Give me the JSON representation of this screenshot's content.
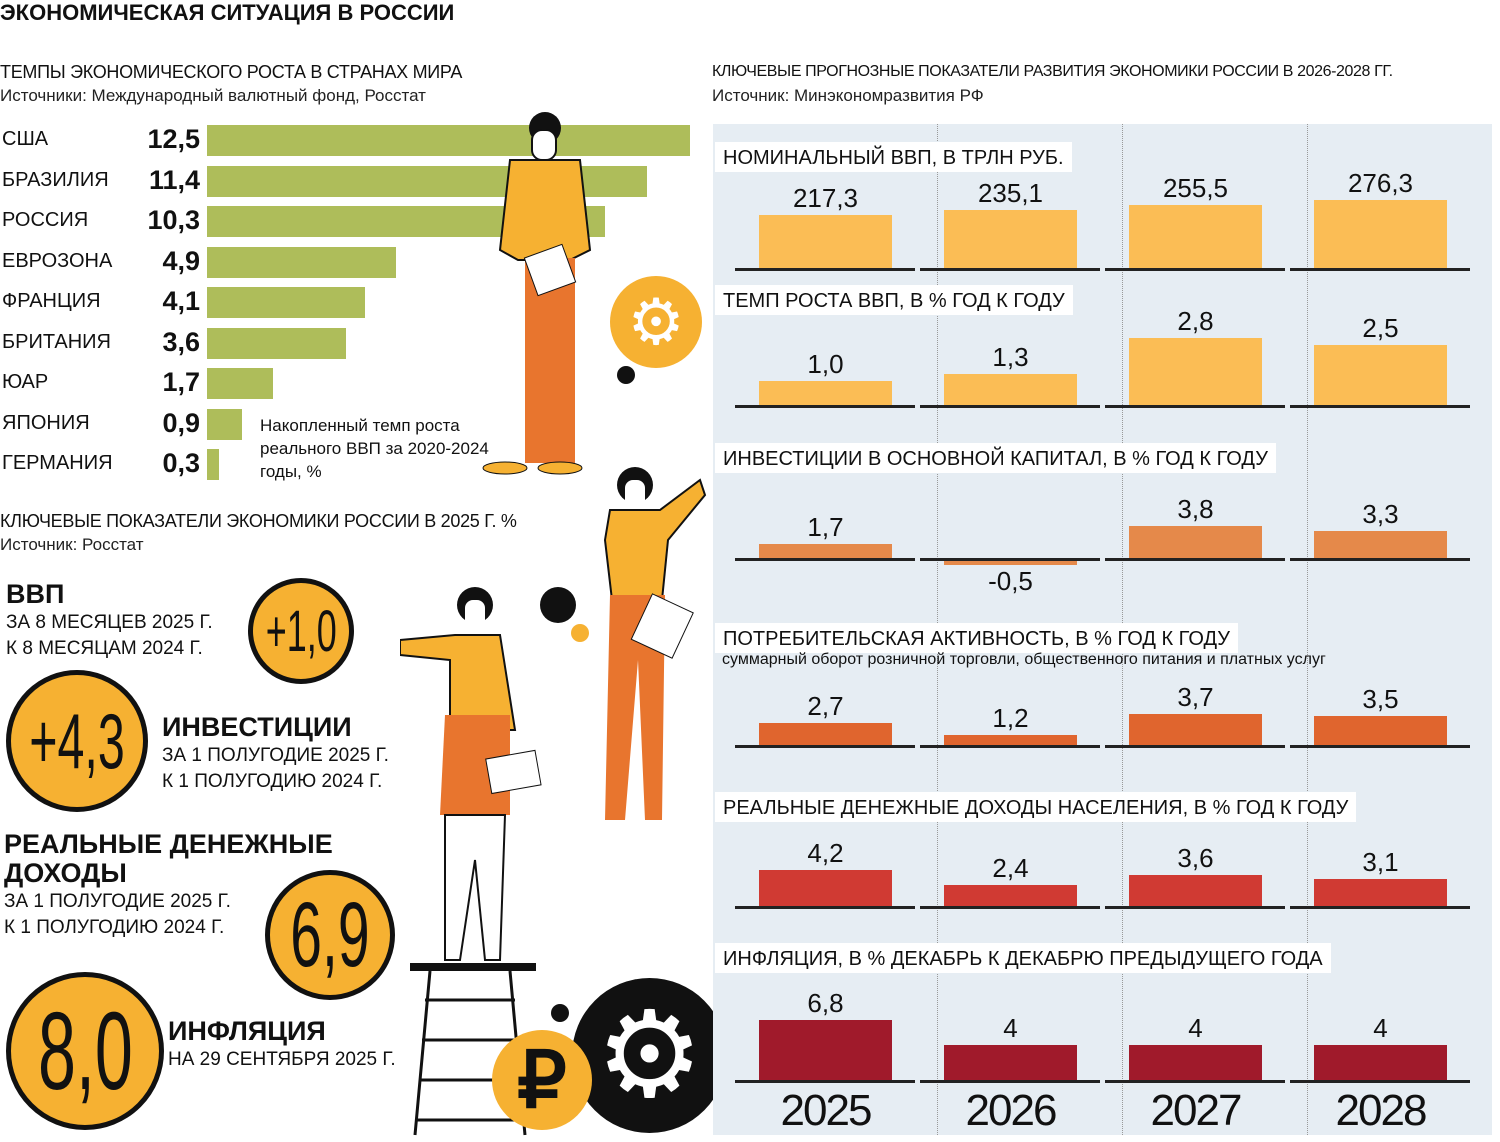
{
  "title": "ЭКОНОМИЧЕСКАЯ СИТУАЦИЯ В РОССИИ",
  "colors": {
    "green": "#aebd5a",
    "gdp": "#fbbd55",
    "investment": "#e5894a",
    "consumer": "#e0652e",
    "income": "#d03a33",
    "inflation": "#a01a2b",
    "circle": "#f6b132",
    "panel_bg": "#e6edf3"
  },
  "chart_data": [
    {
      "type": "bar",
      "orientation": "horizontal",
      "title": "ТЕМПЫ ЭКОНОМИЧЕСКОГО РОСТА В СТРАНАХ МИРА",
      "source": "Источники: Международный валютный фонд, Росстат",
      "note": "Накопленный темп роста реального ВВП за 2020-2024 годы, %",
      "categories": [
        "США",
        "БРАЗИЛИЯ",
        "РОССИЯ",
        "ЕВРОЗОНА",
        "ФРАНЦИЯ",
        "БРИТАНИЯ",
        "ЮАР",
        "ЯПОНИЯ",
        "ГЕРМАНИЯ"
      ],
      "values": [
        12.5,
        11.4,
        10.3,
        4.9,
        4.1,
        3.6,
        1.7,
        0.9,
        0.3
      ],
      "labels": [
        "12,5",
        "11,4",
        "10,3",
        "4,9",
        "4,1",
        "3,6",
        "1,7",
        "0,9",
        "0,3"
      ],
      "xlim": [
        0,
        12.5
      ]
    },
    {
      "type": "bar",
      "title": "КЛЮЧЕВЫЕ ПРОГНОЗНЫЕ ПОКАЗАТЕЛИ РАЗВИТИЯ ЭКОНОМИКИ РОССИИ В 2026-2028 ГГ.",
      "source": "Источник: Минэкономразвития РФ",
      "categories": [
        "2025",
        "2026",
        "2027",
        "2028"
      ],
      "panels": [
        {
          "title": "НОМИНАЛЬНЫЙ ВВП, В ТРЛН РУБ.",
          "color": "#fbbd55",
          "values": [
            217.3,
            235.1,
            255.5,
            276.3
          ],
          "labels": [
            "217,3",
            "235,1",
            "255,5",
            "276,3"
          ]
        },
        {
          "title": "ТЕМП РОСТА ВВП, В % ГОД К ГОДУ",
          "color": "#fbbd55",
          "values": [
            1.0,
            1.3,
            2.8,
            2.5
          ],
          "labels": [
            "1,0",
            "1,3",
            "2,8",
            "2,5"
          ]
        },
        {
          "title": "ИНВЕСТИЦИИ В ОСНОВНОЙ КАПИТАЛ, В % ГОД К ГОДУ",
          "color": "#e5894a",
          "values": [
            1.7,
            -0.5,
            3.8,
            3.3
          ],
          "labels": [
            "1,7",
            "-0,5",
            "3,8",
            "3,3"
          ]
        },
        {
          "title": "ПОТРЕБИТЕЛЬСКАЯ АКТИВНОСТЬ, В % ГОД К ГОДУ",
          "subtitle": "суммарный оборот розничной торговли, общественного питания и платных услуг",
          "color": "#e0652e",
          "values": [
            2.7,
            1.2,
            3.7,
            3.5
          ],
          "labels": [
            "2,7",
            "1,2",
            "3,7",
            "3,5"
          ]
        },
        {
          "title": "РЕАЛЬНЫЕ ДЕНЕЖНЫЕ ДОХОДЫ НАСЕЛЕНИЯ, В % ГОД К ГОДУ",
          "color": "#d03a33",
          "values": [
            4.2,
            2.4,
            3.6,
            3.1
          ],
          "labels": [
            "4,2",
            "2,4",
            "3,6",
            "3,1"
          ]
        },
        {
          "title": "ИНФЛЯЦИЯ, В % ДЕКАБРЬ К ДЕКАБРЮ ПРЕДЫДУЩЕГО ГОДА",
          "color": "#a01a2b",
          "values": [
            6.8,
            4,
            4,
            4
          ],
          "labels": [
            "6,8",
            "4",
            "4",
            "4"
          ]
        }
      ]
    }
  ],
  "key": {
    "title": "КЛЮЧЕВЫЕ ПОКАЗАТЕЛИ ЭКОНОМИКИ РОССИИ В 2025 Г. %",
    "source": "Источник: Росстат",
    "items": [
      {
        "name": "ВВП",
        "l1": "ЗА 8 МЕСЯЦЕВ 2025 Г.",
        "l2": "К 8 МЕСЯЦАМ 2024 Г.",
        "value": "+1,0"
      },
      {
        "name": "ИНВЕСТИЦИИ",
        "l1": "ЗА 1 ПОЛУГОДИЕ 2025 Г.",
        "l2": "К 1 ПОЛУГОДИЮ 2024 Г.",
        "value": "+4,3"
      },
      {
        "name": "РЕАЛЬНЫЕ ДЕНЕЖНЫЕ",
        "name2": "ДОХОДЫ",
        "l1": "ЗА 1 ПОЛУГОДИЕ 2025 Г.",
        "l2": "К 1 ПОЛУГОДИЮ 2024 Г.",
        "value": "6,9"
      },
      {
        "name": "ИНФЛЯЦИЯ",
        "l1": "НА 29 СЕНТЯБРЯ 2025 Г.",
        "value": "8,0"
      }
    ]
  },
  "icons": [
    "gear-icon",
    "ruble-icon",
    "person-illustration"
  ]
}
